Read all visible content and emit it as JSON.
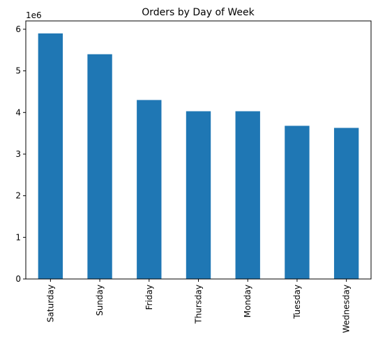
{
  "chart_data": {
    "type": "bar",
    "title": "Orders by Day of Week",
    "xlabel": "",
    "ylabel": "",
    "categories": [
      "Saturday",
      "Sunday",
      "Friday",
      "Thursday",
      "Monday",
      "Tuesday",
      "Wednesday"
    ],
    "values": [
      5900000,
      5400000,
      4300000,
      4030000,
      4030000,
      3680000,
      3630000
    ],
    "ylim": [
      0,
      6200000
    ],
    "yticks": [
      0,
      1,
      2,
      3,
      4,
      5,
      6
    ],
    "ytick_labels": [
      "0",
      "1",
      "2",
      "3",
      "4",
      "5",
      "6"
    ],
    "y_offset_text": "1e6",
    "grid": false,
    "legend": "none",
    "bar_color": "#1f77b4"
  }
}
